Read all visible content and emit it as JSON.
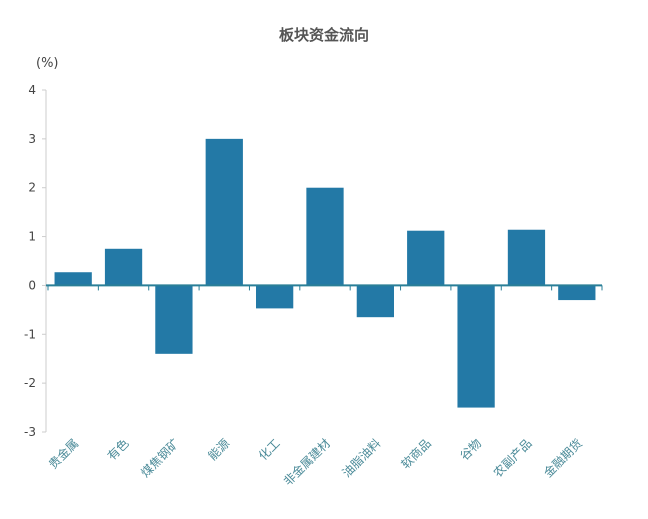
{
  "chart_data": {
    "type": "bar",
    "title": "板块资金流向",
    "unit_label": "(%)",
    "categories": [
      "贵金属",
      "有色",
      "煤焦钢矿",
      "能源",
      "化工",
      "非金属建材",
      "油脂油料",
      "软商品",
      "谷物",
      "农副产品",
      "金融期货"
    ],
    "values": [
      0.27,
      0.75,
      -1.4,
      3.0,
      -0.47,
      2.0,
      -0.65,
      1.12,
      -2.5,
      1.14,
      -0.3
    ],
    "yticks": [
      4,
      3,
      2,
      1,
      0,
      -1,
      -2,
      -3
    ],
    "ylim": [
      -3,
      4
    ],
    "bar_color": "#2379a6",
    "axis_color": "#2a7f98",
    "grid": false,
    "legend": "none"
  }
}
